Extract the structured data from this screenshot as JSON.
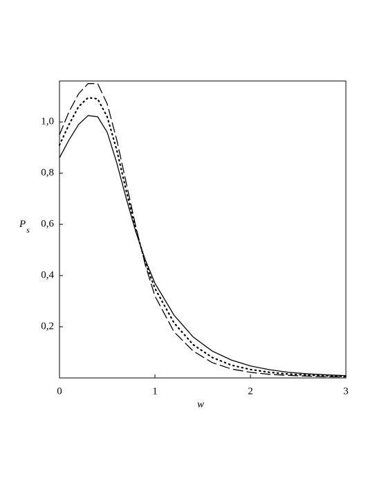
{
  "chart_data": {
    "type": "line",
    "xlabel": "w",
    "ylabel": {
      "text": "P",
      "subscript": "s"
    },
    "x": [
      0,
      0.1,
      0.2,
      0.3,
      0.4,
      0.5,
      0.6,
      0.7,
      0.8,
      0.9,
      1.0,
      1.2,
      1.4,
      1.6,
      1.8,
      2.0,
      2.2,
      2.4,
      2.6,
      2.8,
      3.0
    ],
    "series": [
      {
        "color": "#000000",
        "dash": "none",
        "values": [
          0.86,
          0.93,
          0.99,
          1.025,
          1.02,
          0.96,
          0.84,
          0.7,
          0.57,
          0.46,
          0.37,
          0.245,
          0.16,
          0.105,
          0.07,
          0.047,
          0.032,
          0.022,
          0.016,
          0.012,
          0.009
        ]
      },
      {
        "color": "#000000",
        "dash": "dotted",
        "values": [
          0.91,
          0.99,
          1.06,
          1.095,
          1.09,
          1.02,
          0.89,
          0.73,
          0.58,
          0.45,
          0.35,
          0.215,
          0.13,
          0.08,
          0.05,
          0.033,
          0.022,
          0.015,
          0.011,
          0.008,
          0.006
        ]
      },
      {
        "color": "#000000",
        "dash": "dashed",
        "values": [
          0.95,
          1.04,
          1.11,
          1.15,
          1.15,
          1.07,
          0.93,
          0.76,
          0.59,
          0.44,
          0.32,
          0.18,
          0.105,
          0.06,
          0.035,
          0.022,
          0.014,
          0.01,
          0.007,
          0.005,
          0.004
        ]
      }
    ],
    "xlim": [
      0,
      3
    ],
    "xticks": [
      0,
      1,
      2,
      3
    ],
    "ylim": [
      0,
      1.16
    ],
    "yticks": [
      {
        "value": 0.2,
        "label": "0,2"
      },
      {
        "value": 0.4,
        "label": "0,4"
      },
      {
        "value": 0.6,
        "label": "0,6"
      },
      {
        "value": 0.8,
        "label": "0,8"
      },
      {
        "value": 1.0,
        "label": "1,0"
      }
    ],
    "grid": false
  }
}
